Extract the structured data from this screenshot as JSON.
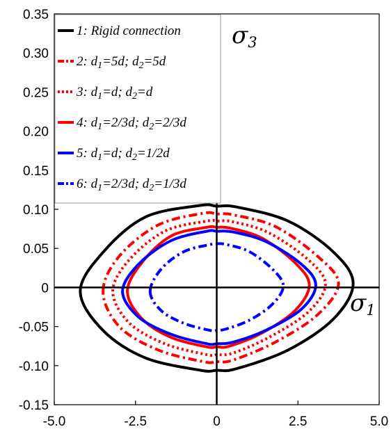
{
  "chart_data": {
    "type": "line",
    "title": "",
    "xlabel": "σ1",
    "ylabel": "σ3",
    "x_axis_label": {
      "base": "σ",
      "sub": "1"
    },
    "y_axis_label": {
      "base": "σ",
      "sub": "3"
    },
    "xlim": [
      -5.0,
      5.0
    ],
    "ylim": [
      -0.15,
      0.35
    ],
    "xticks": [
      "-5.0",
      "-2.5",
      "0",
      "2.5",
      "5.0"
    ],
    "yticks": [
      "-0.15",
      "-0.10",
      "-0.05",
      "0",
      "0.05",
      "0.10",
      "0.15",
      "0.20",
      "0.25",
      "0.30",
      "0.35"
    ],
    "grid": false,
    "legend_position": "top-left",
    "series": [
      {
        "name": "1: Rigid connection",
        "legend": [
          {
            "t": "1: Rigid connection"
          }
        ],
        "color": "#000000",
        "style": "solid",
        "x": [
          -4.2,
          -3.5,
          -2.2,
          -0.5,
          0.0,
          0.6,
          2.2,
          3.6,
          4.2,
          3.6,
          2.2,
          0.6,
          0.0,
          -0.5,
          -2.2,
          -3.5,
          -4.2
        ],
        "y": [
          -0.005,
          0.045,
          0.09,
          0.105,
          0.104,
          0.103,
          0.085,
          0.045,
          0.005,
          -0.04,
          -0.08,
          -0.104,
          -0.106,
          -0.106,
          -0.09,
          -0.055,
          -0.005
        ]
      },
      {
        "name": "2: d1=5d; d2=5d",
        "legend": [
          {
            "t": "2: d"
          },
          {
            "t": "1",
            "s": true
          },
          {
            "t": "=5d; d"
          },
          {
            "t": "2",
            "s": true
          },
          {
            "t": "=5d"
          }
        ],
        "color": "#ff0000",
        "style": "dashdot",
        "x": [
          -3.5,
          -3.0,
          -1.8,
          -0.4,
          0.0,
          0.5,
          1.8,
          3.1,
          3.75,
          3.1,
          1.8,
          0.5,
          0.0,
          -0.4,
          -1.8,
          -3.0,
          -3.5
        ],
        "y": [
          -0.005,
          0.04,
          0.08,
          0.095,
          0.094,
          0.093,
          0.078,
          0.04,
          0.005,
          -0.035,
          -0.07,
          -0.093,
          -0.095,
          -0.095,
          -0.08,
          -0.05,
          -0.005
        ]
      },
      {
        "name": "3: d1=d; d2=d",
        "legend": [
          {
            "t": "3: d"
          },
          {
            "t": "1",
            "s": true
          },
          {
            "t": "=d; d"
          },
          {
            "t": "2",
            "s": true
          },
          {
            "t": "=d"
          }
        ],
        "color": "#ff0000",
        "style": "dotted",
        "x": [
          -3.2,
          -2.7,
          -1.6,
          -0.3,
          0.0,
          0.5,
          1.6,
          2.8,
          3.35,
          2.8,
          1.6,
          0.5,
          0.0,
          -0.3,
          -1.6,
          -2.7,
          -3.2
        ],
        "y": [
          -0.005,
          0.035,
          0.072,
          0.085,
          0.085,
          0.084,
          0.07,
          0.036,
          0.004,
          -0.032,
          -0.064,
          -0.084,
          -0.086,
          -0.086,
          -0.072,
          -0.045,
          -0.005
        ]
      },
      {
        "name": "4: d1=2/3d; d2=2/3d",
        "legend": [
          {
            "t": "4: d"
          },
          {
            "t": "1",
            "s": true
          },
          {
            "t": "=2/3d; d"
          },
          {
            "t": "2",
            "s": true
          },
          {
            "t": "=2/3d"
          }
        ],
        "color": "#ff0000",
        "style": "solid",
        "x": [
          -2.75,
          -2.3,
          -1.4,
          -0.3,
          0.0,
          0.4,
          1.4,
          2.4,
          2.85,
          2.4,
          1.4,
          0.4,
          0.0,
          -0.3,
          -1.4,
          -2.3,
          -2.75
        ],
        "y": [
          -0.005,
          0.032,
          0.066,
          0.077,
          0.077,
          0.076,
          0.063,
          0.032,
          0.003,
          -0.03,
          -0.058,
          -0.075,
          -0.076,
          -0.076,
          -0.064,
          -0.04,
          -0.005
        ]
      },
      {
        "name": "5: d1=d; d2=1/2d",
        "legend": [
          {
            "t": "5: d"
          },
          {
            "t": "1",
            "s": true
          },
          {
            "t": "=d; d"
          },
          {
            "t": "2",
            "s": true
          },
          {
            "t": "=1/2d"
          }
        ],
        "color": "#0000ff",
        "style": "solid",
        "x": [
          -2.9,
          -2.4,
          -1.4,
          -0.3,
          0.0,
          0.5,
          1.5,
          2.6,
          3.05,
          2.6,
          1.5,
          0.5,
          0.0,
          -0.3,
          -1.4,
          -2.4,
          -2.9
        ],
        "y": [
          -0.005,
          0.03,
          0.06,
          0.072,
          0.072,
          0.071,
          0.059,
          0.03,
          0.003,
          -0.028,
          -0.055,
          -0.07,
          -0.072,
          -0.072,
          -0.06,
          -0.038,
          -0.005
        ]
      },
      {
        "name": "6: d1=2/3d; d2=1/3d",
        "legend": [
          {
            "t": "6: d"
          },
          {
            "t": "1",
            "s": true
          },
          {
            "t": "=2/3d; d"
          },
          {
            "t": "2",
            "s": true
          },
          {
            "t": "=1/3d"
          }
        ],
        "color": "#0000ff",
        "style": "dashdot",
        "x": [
          -2.05,
          -1.7,
          -1.0,
          -0.2,
          0.0,
          0.3,
          1.0,
          1.7,
          2.05,
          1.7,
          1.0,
          0.3,
          0.0,
          -0.2,
          -1.0,
          -1.7,
          -2.05
        ],
        "y": [
          -0.005,
          0.024,
          0.046,
          0.055,
          0.056,
          0.055,
          0.046,
          0.024,
          0.002,
          -0.022,
          -0.042,
          -0.053,
          -0.055,
          -0.055,
          -0.046,
          -0.03,
          -0.005
        ]
      }
    ]
  }
}
